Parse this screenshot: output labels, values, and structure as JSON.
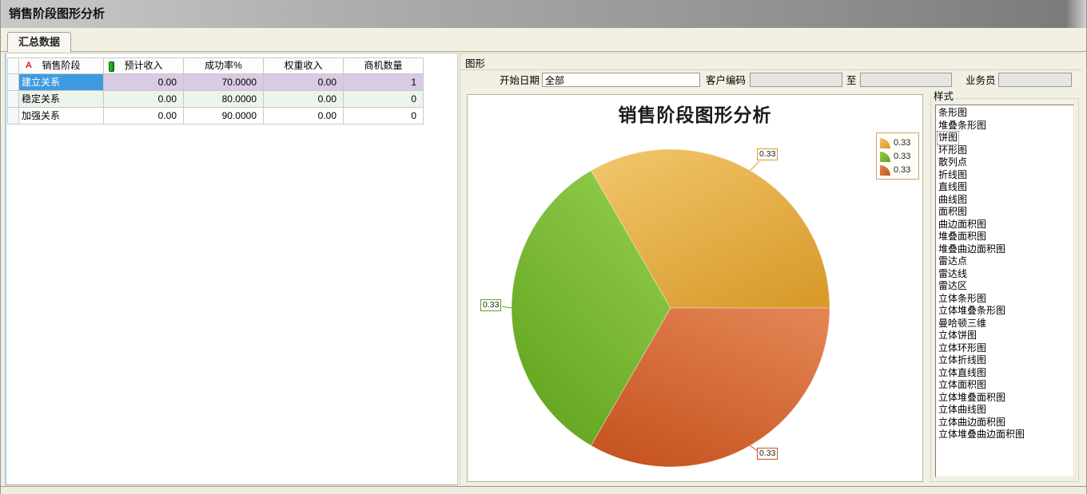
{
  "window": {
    "title": "销售阶段图形分析"
  },
  "tabs": {
    "summary": {
      "label": "汇总数据"
    }
  },
  "table": {
    "columns": [
      "销售阶段",
      "预计收入",
      "成功率%",
      "权重收入",
      "商机数量"
    ],
    "header_icons": [
      "red-letter-A-icon",
      "green-bar-icon"
    ],
    "rows": [
      {
        "stage": "建立关系",
        "expected_income": "0.00",
        "success_rate": "70.0000",
        "weighted_income": "0.00",
        "opportunity_count": "1",
        "selected": true,
        "row_color": "#D9CBE3"
      },
      {
        "stage": "稳定关系",
        "expected_income": "0.00",
        "success_rate": "80.0000",
        "weighted_income": "0.00",
        "opportunity_count": "0",
        "selected": false,
        "row_color": "#ECF5EC"
      },
      {
        "stage": "加强关系",
        "expected_income": "0.00",
        "success_rate": "90.0000",
        "weighted_income": "0.00",
        "opportunity_count": "0",
        "selected": false,
        "row_color": "#FFFFFF"
      }
    ]
  },
  "graph_panel": {
    "label": "图形",
    "filters": {
      "start_date_label": "开始日期",
      "start_date_value": "全部",
      "customer_code_label": "客户编码",
      "customer_code_value": "",
      "to_label": "至",
      "to_value": "",
      "salesman_label": "业务员",
      "salesman_value": ""
    },
    "styles": {
      "group_label": "样式",
      "selected": "饼图",
      "items": [
        "条形图",
        "堆叠条形图",
        "饼图",
        "环形图",
        "散列点",
        "折线图",
        "直线图",
        "曲线图",
        "面积图",
        "曲边面积图",
        "堆叠面积图",
        "堆叠曲边面积图",
        "雷达点",
        "雷达线",
        "雷达区",
        "立体条形图",
        "立体堆叠条形图",
        "曼哈顿三维",
        "立体饼图",
        "立体环形图",
        "立体折线图",
        "立体直线图",
        "立体面积图",
        "立体堆叠面积图",
        "立体曲线图",
        "立体曲边面积图",
        "立体堆叠曲边面积图"
      ]
    }
  },
  "chart_data": {
    "type": "pie",
    "title": "销售阶段图形分析",
    "series": [
      {
        "name": "slice-orange",
        "value": 0.33,
        "display": "0.33",
        "color_light": "#F0C468",
        "color_dark": "#D89A2B"
      },
      {
        "name": "slice-green",
        "value": 0.33,
        "display": "0.33",
        "color_light": "#93CC4D",
        "color_dark": "#61A41E"
      },
      {
        "name": "slice-red",
        "value": 0.33,
        "display": "0.33",
        "color_light": "#E28352",
        "color_dark": "#C65420"
      }
    ],
    "start_angle_deg": 0,
    "direction": "counterclockwise",
    "legend_position": "top-right",
    "colors": {
      "selection_blue": "#3F9BE0"
    }
  }
}
